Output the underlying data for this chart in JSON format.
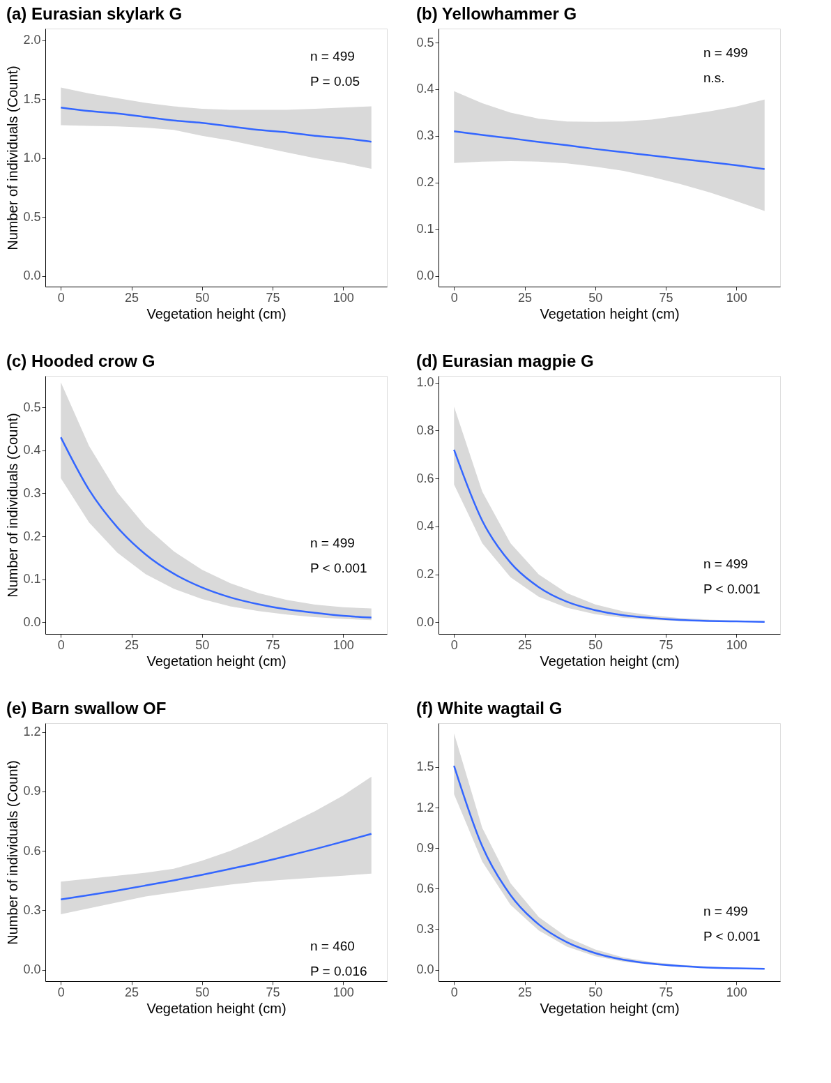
{
  "chart_data": [
    {
      "type": "line",
      "title": "(a) Eurasian skylark G",
      "xlabel": "Vegetation height (cm)",
      "ylabel": "Number of individuals (Count)",
      "x": [
        0,
        10,
        20,
        30,
        40,
        50,
        60,
        70,
        80,
        90,
        100,
        110
      ],
      "xlim": [
        -5.5,
        115.5
      ],
      "xticks": [
        0,
        25,
        50,
        75,
        100
      ],
      "ylim": [
        -0.09,
        2.1
      ],
      "yticks": [
        {
          "value": 0,
          "label": "0.0"
        },
        0.5,
        {
          "value": 1,
          "label": "1.0"
        },
        1.5,
        {
          "value": 2,
          "label": "2.0"
        }
      ],
      "grid": false,
      "annotations": [
        "n = 499",
        "P = 0.05"
      ],
      "series": [
        {
          "color": "#3366ff",
          "values": [
            1.43,
            1.4,
            1.38,
            1.35,
            1.32,
            1.3,
            1.27,
            1.24,
            1.22,
            1.19,
            1.17,
            1.14
          ],
          "lower": [
            1.28,
            1.275,
            1.27,
            1.26,
            1.24,
            1.19,
            1.15,
            1.1,
            1.05,
            1.0,
            0.96,
            0.91
          ],
          "upper": [
            1.6,
            1.55,
            1.51,
            1.47,
            1.44,
            1.42,
            1.41,
            1.41,
            1.41,
            1.42,
            1.43,
            1.44
          ]
        }
      ]
    },
    {
      "type": "line",
      "title": "(b) Yellowhammer G",
      "xlabel": "Vegetation height (cm)",
      "x": [
        0,
        10,
        20,
        30,
        40,
        50,
        60,
        70,
        80,
        90,
        100,
        110
      ],
      "xlim": [
        -5.5,
        115.5
      ],
      "xticks": [
        0,
        25,
        50,
        75,
        100
      ],
      "ylim": [
        -0.023,
        0.53
      ],
      "yticks": [
        {
          "value": 0,
          "label": "0.0"
        },
        0.1,
        0.2,
        0.3,
        0.4,
        0.5
      ],
      "grid": false,
      "annotations": [
        "n = 499",
        "n.s."
      ],
      "series": [
        {
          "color": "#3366ff",
          "values": [
            0.31,
            0.302,
            0.295,
            0.287,
            0.28,
            0.272,
            0.265,
            0.258,
            0.251,
            0.244,
            0.237,
            0.229
          ],
          "lower": [
            0.242,
            0.245,
            0.246,
            0.245,
            0.241,
            0.234,
            0.225,
            0.212,
            0.197,
            0.18,
            0.16,
            0.139
          ],
          "upper": [
            0.396,
            0.37,
            0.35,
            0.337,
            0.331,
            0.33,
            0.331,
            0.335,
            0.343,
            0.352,
            0.363,
            0.378
          ]
        }
      ]
    },
    {
      "type": "line",
      "title": "(c) Hooded crow G",
      "xlabel": "Vegetation height (cm)",
      "ylabel": "Number of individuals (Count)",
      "x": [
        0,
        10,
        20,
        30,
        40,
        50,
        60,
        70,
        80,
        90,
        100,
        110
      ],
      "xlim": [
        -5.5,
        115.5
      ],
      "xticks": [
        0,
        25,
        50,
        75,
        100
      ],
      "ylim": [
        -0.027,
        0.573
      ],
      "yticks": [
        {
          "value": 0,
          "label": "0.0"
        },
        0.1,
        0.2,
        0.3,
        0.4,
        0.5
      ],
      "grid": false,
      "annotations": [
        "n = 499",
        "P < 0.001"
      ],
      "series": [
        {
          "color": "#3366ff",
          "values": [
            0.43,
            0.308,
            0.221,
            0.158,
            0.113,
            0.081,
            0.058,
            0.042,
            0.03,
            0.022,
            0.015,
            0.011
          ],
          "lower": [
            0.335,
            0.232,
            0.162,
            0.112,
            0.078,
            0.054,
            0.037,
            0.026,
            0.018,
            0.012,
            0.008,
            0.005
          ],
          "upper": [
            0.558,
            0.41,
            0.302,
            0.223,
            0.165,
            0.122,
            0.091,
            0.068,
            0.052,
            0.041,
            0.035,
            0.032
          ]
        }
      ]
    },
    {
      "type": "line",
      "title": "(d) Eurasian magpie G",
      "xlabel": "Vegetation height (cm)",
      "x": [
        0,
        10,
        20,
        30,
        40,
        50,
        60,
        70,
        80,
        90,
        100,
        110
      ],
      "xlim": [
        -5.5,
        115.5
      ],
      "xticks": [
        0,
        25,
        50,
        75,
        100
      ],
      "ylim": [
        -0.048,
        1.028
      ],
      "yticks": [
        {
          "value": 0,
          "label": "0.0"
        },
        0.2,
        0.4,
        0.6,
        0.8,
        {
          "value": 1,
          "label": "1.0"
        }
      ],
      "grid": false,
      "annotations": [
        "n = 499",
        "P < 0.001"
      ],
      "series": [
        {
          "color": "#3366ff",
          "values": [
            0.72,
            0.424,
            0.249,
            0.147,
            0.086,
            0.051,
            0.03,
            0.018,
            0.01,
            0.006,
            0.004,
            0.002
          ],
          "lower": [
            0.575,
            0.33,
            0.188,
            0.107,
            0.061,
            0.034,
            0.019,
            0.011,
            0.006,
            0.003,
            0.002,
            0.001
          ],
          "upper": [
            0.9,
            0.545,
            0.33,
            0.2,
            0.122,
            0.075,
            0.046,
            0.029,
            0.018,
            0.012,
            0.008,
            0.005
          ]
        }
      ]
    },
    {
      "type": "line",
      "title": "(e) Barn swallow OF",
      "xlabel": "Vegetation height (cm)",
      "ylabel": "Number of individuals (Count)",
      "x": [
        0,
        10,
        20,
        30,
        40,
        50,
        60,
        70,
        80,
        90,
        100,
        110
      ],
      "xlim": [
        -5.5,
        115.5
      ],
      "xticks": [
        0,
        25,
        50,
        75,
        100
      ],
      "ylim": [
        -0.058,
        1.245
      ],
      "yticks": [
        {
          "value": 0,
          "label": "0.0"
        },
        0.3,
        0.6,
        0.9,
        1.2
      ],
      "grid": false,
      "annotations": [
        "n = 460",
        "P = 0.016"
      ],
      "series": [
        {
          "color": "#3366ff",
          "values": [
            0.355,
            0.377,
            0.4,
            0.425,
            0.451,
            0.479,
            0.509,
            0.54,
            0.574,
            0.609,
            0.647,
            0.686
          ],
          "lower": [
            0.28,
            0.31,
            0.34,
            0.37,
            0.39,
            0.41,
            0.43,
            0.445,
            0.455,
            0.465,
            0.475,
            0.485
          ],
          "upper": [
            0.445,
            0.46,
            0.475,
            0.49,
            0.51,
            0.55,
            0.6,
            0.66,
            0.73,
            0.8,
            0.88,
            0.975
          ]
        }
      ]
    },
    {
      "type": "line",
      "title": "(f) White wagtail G",
      "xlabel": "Vegetation height (cm)",
      "x": [
        0,
        10,
        20,
        30,
        40,
        50,
        60,
        70,
        80,
        90,
        100,
        110
      ],
      "xlim": [
        -5.5,
        115.5
      ],
      "xticks": [
        0,
        25,
        50,
        75,
        100
      ],
      "ylim": [
        -0.085,
        1.825
      ],
      "yticks": [
        {
          "value": 0,
          "label": "0.0"
        },
        0.3,
        0.6,
        0.9,
        1.2,
        1.5
      ],
      "grid": false,
      "annotations": [
        "n = 499",
        "P < 0.001"
      ],
      "series": [
        {
          "color": "#3366ff",
          "values": [
            1.51,
            0.914,
            0.553,
            0.335,
            0.203,
            0.123,
            0.074,
            0.045,
            0.027,
            0.016,
            0.01,
            0.006
          ],
          "lower": [
            1.3,
            0.8,
            0.48,
            0.29,
            0.17,
            0.1,
            0.06,
            0.036,
            0.021,
            0.012,
            0.007,
            0.004
          ],
          "upper": [
            1.75,
            1.05,
            0.64,
            0.39,
            0.24,
            0.15,
            0.09,
            0.057,
            0.036,
            0.023,
            0.014,
            0.009
          ]
        }
      ]
    }
  ]
}
